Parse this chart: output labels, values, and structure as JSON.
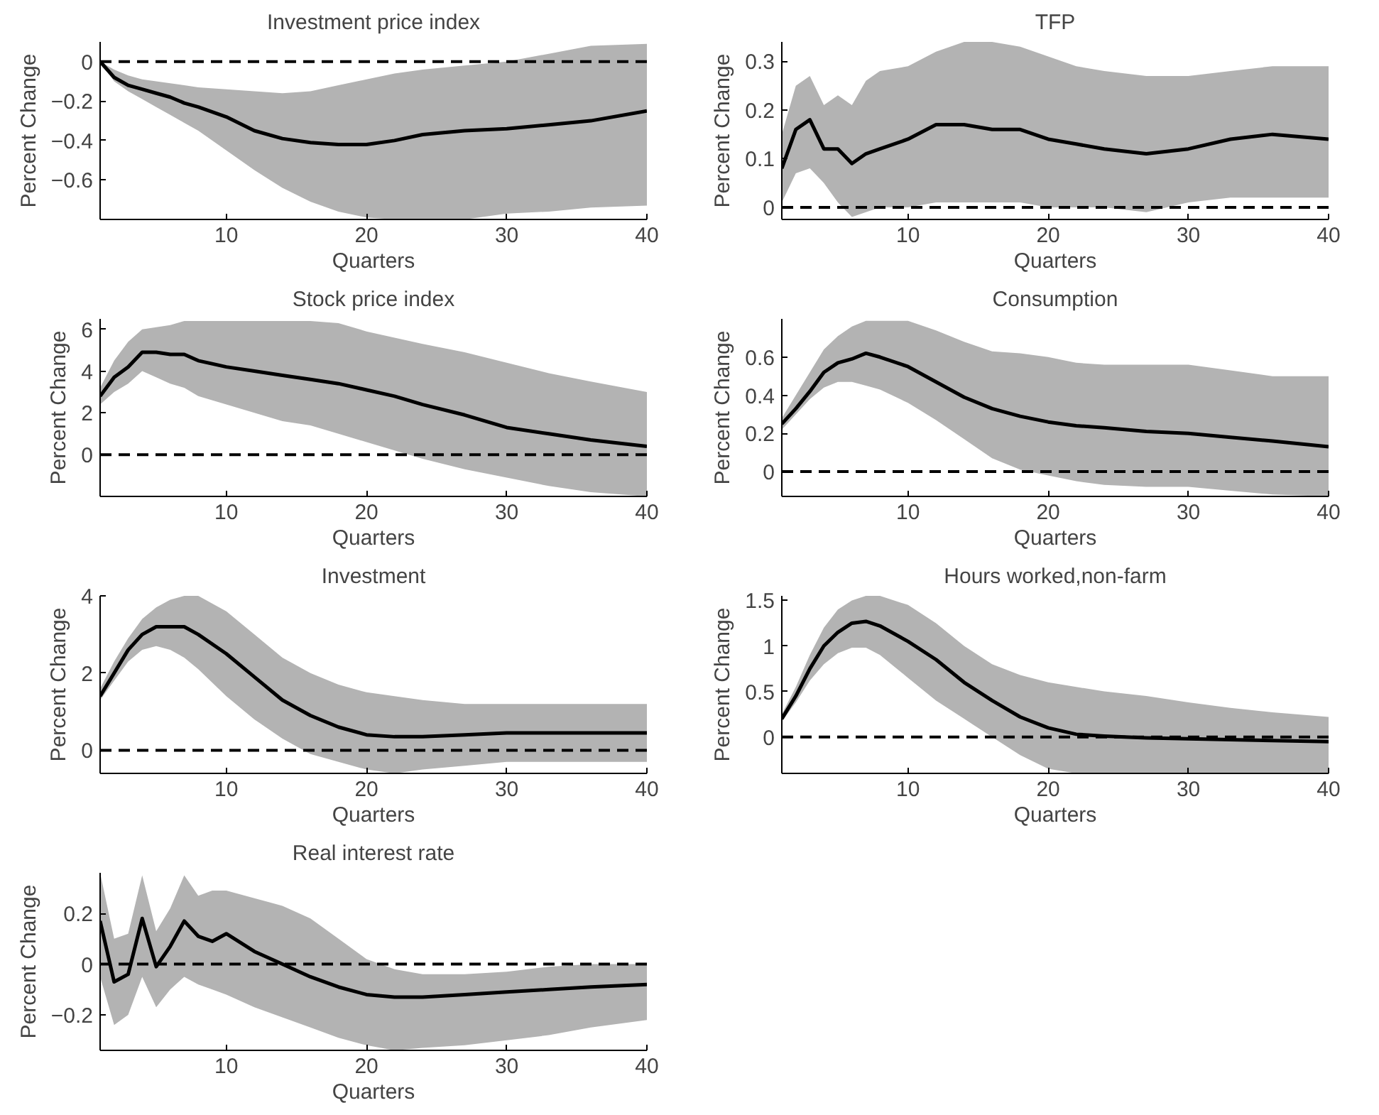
{
  "chart_data": [
    {
      "type": "line",
      "title": "Investment price index",
      "xlabel": "Quarters",
      "ylabel": "Percent Change",
      "x": [
        1,
        2,
        3,
        4,
        5,
        6,
        7,
        8,
        10,
        12,
        14,
        16,
        18,
        20,
        22,
        24,
        27,
        30,
        33,
        36,
        40
      ],
      "xlim": [
        1,
        40
      ],
      "xticks": [
        10,
        20,
        30,
        40
      ],
      "ylim": [
        -0.8,
        0.1
      ],
      "yticks": [
        -0.6,
        -0.4,
        -0.2,
        0
      ],
      "series": [
        {
          "color": "#000000",
          "values": [
            0,
            -0.08,
            -0.12,
            -0.14,
            -0.16,
            -0.18,
            -0.21,
            -0.23,
            -0.28,
            -0.35,
            -0.39,
            -0.41,
            -0.42,
            -0.42,
            -0.4,
            -0.37,
            -0.35,
            -0.34,
            -0.32,
            -0.3,
            -0.25
          ],
          "upper": [
            0,
            -0.04,
            -0.07,
            -0.09,
            -0.1,
            -0.11,
            -0.12,
            -0.13,
            -0.14,
            -0.15,
            -0.16,
            -0.15,
            -0.12,
            -0.09,
            -0.06,
            -0.04,
            -0.02,
            0.0,
            0.04,
            0.08,
            0.09
          ],
          "lower": [
            0,
            -0.1,
            -0.15,
            -0.19,
            -0.23,
            -0.27,
            -0.31,
            -0.35,
            -0.45,
            -0.55,
            -0.64,
            -0.71,
            -0.76,
            -0.79,
            -0.8,
            -0.8,
            -0.8,
            -0.77,
            -0.76,
            -0.74,
            -0.73
          ]
        }
      ],
      "ref_lines": [
        {
          "axis": "y",
          "value": 0,
          "line_style": "dashed",
          "color": "#000000"
        }
      ]
    },
    {
      "type": "line",
      "title": "TFP",
      "xlabel": "Quarters",
      "ylabel": "Percent Change",
      "x": [
        1,
        2,
        3,
        4,
        5,
        6,
        7,
        8,
        10,
        12,
        14,
        16,
        18,
        20,
        22,
        24,
        27,
        30,
        33,
        36,
        40
      ],
      "xlim": [
        1,
        40
      ],
      "xticks": [
        10,
        20,
        30,
        40
      ],
      "ylim": [
        -0.025,
        0.34
      ],
      "yticks": [
        0,
        0.1,
        0.2,
        0.3
      ],
      "series": [
        {
          "color": "#000000",
          "values": [
            0.08,
            0.16,
            0.18,
            0.12,
            0.12,
            0.09,
            0.11,
            0.12,
            0.14,
            0.17,
            0.17,
            0.16,
            0.16,
            0.14,
            0.13,
            0.12,
            0.11,
            0.12,
            0.14,
            0.15,
            0.14
          ],
          "upper": [
            0.15,
            0.25,
            0.27,
            0.21,
            0.23,
            0.21,
            0.26,
            0.28,
            0.29,
            0.32,
            0.34,
            0.34,
            0.33,
            0.31,
            0.29,
            0.28,
            0.27,
            0.27,
            0.28,
            0.29,
            0.29
          ],
          "lower": [
            0.01,
            0.07,
            0.08,
            0.05,
            0.01,
            -0.02,
            -0.01,
            0.0,
            0.0,
            0.01,
            0.01,
            0.01,
            0.01,
            0.0,
            0.0,
            0.0,
            -0.01,
            0.01,
            0.02,
            0.02,
            0.02
          ]
        }
      ],
      "ref_lines": [
        {
          "axis": "y",
          "value": 0,
          "line_style": "dashed",
          "color": "#000000"
        }
      ]
    },
    {
      "type": "line",
      "title": "Stock price index",
      "xlabel": "Quarters",
      "ylabel": "Percent Change",
      "x": [
        1,
        2,
        3,
        4,
        5,
        6,
        7,
        8,
        10,
        12,
        14,
        16,
        18,
        20,
        22,
        24,
        27,
        30,
        33,
        36,
        40
      ],
      "xlim": [
        1,
        40
      ],
      "xticks": [
        10,
        20,
        30,
        40
      ],
      "ylim": [
        -2,
        6.5
      ],
      "yticks": [
        0,
        2,
        4,
        6
      ],
      "series": [
        {
          "color": "#000000",
          "values": [
            2.8,
            3.7,
            4.2,
            4.9,
            4.9,
            4.8,
            4.8,
            4.5,
            4.2,
            4.0,
            3.8,
            3.6,
            3.4,
            3.1,
            2.8,
            2.4,
            1.9,
            1.3,
            1.0,
            0.7,
            0.4
          ],
          "upper": [
            3.2,
            4.5,
            5.4,
            6.0,
            6.1,
            6.2,
            6.4,
            6.4,
            6.4,
            6.4,
            6.4,
            6.4,
            6.3,
            5.9,
            5.6,
            5.3,
            4.9,
            4.4,
            3.9,
            3.5,
            3.0
          ],
          "lower": [
            2.4,
            3.0,
            3.4,
            4.0,
            3.7,
            3.4,
            3.2,
            2.8,
            2.4,
            2.0,
            1.6,
            1.4,
            1.0,
            0.6,
            0.2,
            -0.2,
            -0.7,
            -1.1,
            -1.5,
            -1.8,
            -2.0
          ]
        }
      ],
      "ref_lines": [
        {
          "axis": "y",
          "value": 0,
          "line_style": "dashed",
          "color": "#000000"
        }
      ]
    },
    {
      "type": "line",
      "title": "Consumption",
      "xlabel": "Quarters",
      "ylabel": "Percent Change",
      "x": [
        1,
        2,
        3,
        4,
        5,
        6,
        7,
        8,
        10,
        12,
        14,
        16,
        18,
        20,
        22,
        24,
        27,
        30,
        33,
        36,
        40
      ],
      "xlim": [
        1,
        40
      ],
      "xticks": [
        10,
        20,
        30,
        40
      ],
      "ylim": [
        -0.13,
        0.8
      ],
      "yticks": [
        0,
        0.2,
        0.4,
        0.6
      ],
      "series": [
        {
          "color": "#000000",
          "values": [
            0.25,
            0.33,
            0.42,
            0.52,
            0.57,
            0.59,
            0.62,
            0.6,
            0.55,
            0.47,
            0.39,
            0.33,
            0.29,
            0.26,
            0.24,
            0.23,
            0.21,
            0.2,
            0.18,
            0.16,
            0.13
          ],
          "upper": [
            0.28,
            0.4,
            0.52,
            0.64,
            0.71,
            0.76,
            0.79,
            0.79,
            0.79,
            0.74,
            0.68,
            0.63,
            0.62,
            0.6,
            0.57,
            0.56,
            0.56,
            0.56,
            0.53,
            0.5,
            0.5
          ],
          "lower": [
            0.22,
            0.3,
            0.38,
            0.44,
            0.47,
            0.47,
            0.45,
            0.43,
            0.36,
            0.27,
            0.17,
            0.07,
            0.01,
            -0.02,
            -0.05,
            -0.07,
            -0.08,
            -0.08,
            -0.1,
            -0.12,
            -0.13
          ]
        }
      ],
      "ref_lines": [
        {
          "axis": "y",
          "value": 0,
          "line_style": "dashed",
          "color": "#000000"
        }
      ]
    },
    {
      "type": "line",
      "title": "Investment",
      "xlabel": "Quarters",
      "ylabel": "Percent Change",
      "x": [
        1,
        2,
        3,
        4,
        5,
        6,
        7,
        8,
        10,
        12,
        14,
        16,
        18,
        20,
        22,
        24,
        27,
        30,
        33,
        36,
        40
      ],
      "xlim": [
        1,
        40
      ],
      "xticks": [
        10,
        20,
        30,
        40
      ],
      "ylim": [
        -0.6,
        4
      ],
      "yticks": [
        0,
        2,
        4
      ],
      "series": [
        {
          "color": "#000000",
          "values": [
            1.4,
            2.0,
            2.6,
            3.0,
            3.2,
            3.2,
            3.2,
            3.0,
            2.5,
            1.9,
            1.3,
            0.9,
            0.6,
            0.4,
            0.35,
            0.35,
            0.4,
            0.45,
            0.45,
            0.45,
            0.45
          ],
          "upper": [
            1.6,
            2.3,
            2.9,
            3.4,
            3.7,
            3.9,
            4.0,
            4.0,
            3.6,
            3.0,
            2.4,
            2.0,
            1.7,
            1.5,
            1.4,
            1.3,
            1.2,
            1.2,
            1.2,
            1.2,
            1.2
          ],
          "lower": [
            1.3,
            1.8,
            2.3,
            2.6,
            2.7,
            2.6,
            2.4,
            2.1,
            1.4,
            0.8,
            0.3,
            -0.1,
            -0.3,
            -0.5,
            -0.6,
            -0.5,
            -0.4,
            -0.3,
            -0.3,
            -0.3,
            -0.3
          ]
        }
      ],
      "ref_lines": [
        {
          "axis": "y",
          "value": 0,
          "line_style": "dashed",
          "color": "#000000"
        }
      ]
    },
    {
      "type": "line",
      "title": "Hours worked,non-farm",
      "xlabel": "Quarters",
      "ylabel": "Percent Change",
      "x": [
        1,
        2,
        3,
        4,
        5,
        6,
        7,
        8,
        10,
        12,
        14,
        16,
        18,
        20,
        22,
        24,
        27,
        30,
        33,
        36,
        40
      ],
      "xlim": [
        1,
        40
      ],
      "xticks": [
        10,
        20,
        30,
        40
      ],
      "ylim": [
        -0.4,
        1.55
      ],
      "yticks": [
        0,
        0.5,
        1,
        1.5
      ],
      "series": [
        {
          "color": "#000000",
          "values": [
            0.2,
            0.45,
            0.75,
            1.0,
            1.15,
            1.25,
            1.27,
            1.22,
            1.05,
            0.85,
            0.6,
            0.4,
            0.22,
            0.1,
            0.03,
            0.01,
            -0.01,
            -0.02,
            -0.03,
            -0.04,
            -0.05
          ],
          "upper": [
            0.25,
            0.55,
            0.9,
            1.2,
            1.4,
            1.5,
            1.55,
            1.55,
            1.45,
            1.25,
            1.0,
            0.8,
            0.68,
            0.6,
            0.55,
            0.5,
            0.45,
            0.38,
            0.32,
            0.27,
            0.22
          ],
          "lower": [
            0.17,
            0.38,
            0.62,
            0.8,
            0.92,
            0.98,
            0.98,
            0.9,
            0.65,
            0.4,
            0.2,
            0.0,
            -0.2,
            -0.35,
            -0.4,
            -0.4,
            -0.4,
            -0.4,
            -0.4,
            -0.4,
            -0.4
          ]
        }
      ],
      "ref_lines": [
        {
          "axis": "y",
          "value": 0,
          "line_style": "dashed",
          "color": "#000000"
        }
      ]
    },
    {
      "type": "line",
      "title": "Real interest rate",
      "xlabel": "Quarters",
      "ylabel": "Percent Change",
      "x": [
        1,
        2,
        3,
        4,
        5,
        6,
        7,
        8,
        9,
        10,
        12,
        14,
        16,
        18,
        20,
        22,
        24,
        27,
        30,
        33,
        36,
        40
      ],
      "xlim": [
        1,
        40
      ],
      "xticks": [
        10,
        20,
        30,
        40
      ],
      "ylim": [
        -0.34,
        0.36
      ],
      "yticks": [
        -0.2,
        0,
        0.2
      ],
      "series": [
        {
          "color": "#000000",
          "values": [
            0.17,
            -0.07,
            -0.04,
            0.18,
            -0.01,
            0.07,
            0.17,
            0.11,
            0.09,
            0.12,
            0.05,
            0.0,
            -0.05,
            -0.09,
            -0.12,
            -0.13,
            -0.13,
            -0.12,
            -0.11,
            -0.1,
            -0.09,
            -0.08
          ],
          "upper": [
            0.36,
            0.1,
            0.12,
            0.35,
            0.13,
            0.22,
            0.35,
            0.27,
            0.29,
            0.29,
            0.26,
            0.23,
            0.18,
            0.1,
            0.02,
            -0.02,
            -0.04,
            -0.04,
            -0.03,
            -0.01,
            0.0,
            0.0
          ],
          "lower": [
            -0.05,
            -0.24,
            -0.2,
            -0.05,
            -0.17,
            -0.1,
            -0.05,
            -0.08,
            -0.1,
            -0.12,
            -0.17,
            -0.21,
            -0.25,
            -0.29,
            -0.32,
            -0.34,
            -0.33,
            -0.32,
            -0.3,
            -0.28,
            -0.25,
            -0.22
          ]
        }
      ],
      "ref_lines": [
        {
          "axis": "y",
          "value": 0,
          "line_style": "dashed",
          "color": "#000000"
        }
      ]
    }
  ]
}
